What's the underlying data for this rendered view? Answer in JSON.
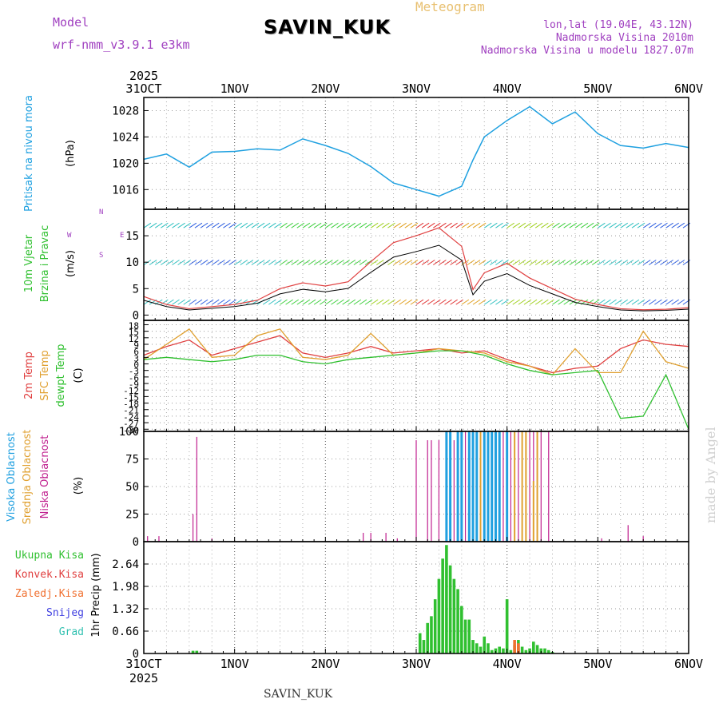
{
  "header": {
    "model_label": "Model",
    "model_name": "wrf-nmm_v3.9.1  e3km",
    "station": "SAVIN_KUK",
    "meteogram": "Meteogram",
    "lonlat": "lon,lat (19.04E, 43.12N)",
    "altitude": "Nadmorska Visina 2010m",
    "model_altitude": "Nadmorska Visina u modelu 1827.07m",
    "footer_station": "SAVIN_KUK",
    "watermark": "made by Angel"
  },
  "colors": {
    "pressure": "#1ea0e0",
    "temp2m": "#e04040",
    "sfc": "#e0a030",
    "dew": "#30c030",
    "low": "#c0208f",
    "mid": "#e0a030",
    "high": "#20a0e0",
    "precip": "#30c030",
    "conv": "#e04040",
    "frozen": "#f07030",
    "purple": "#a040c0",
    "green": "#30c030"
  },
  "chart_data": [
    {
      "type": "line",
      "panel": "pressure",
      "title": "Pritisak na nivou mora",
      "ylabel": "(hPa)",
      "x_ticks": [
        "31OCT",
        "1NOV",
        "2NOV",
        "3NOV",
        "4NOV",
        "5NOV",
        "6NOV"
      ],
      "year": "2025",
      "ylim": [
        1013,
        1030
      ],
      "yticks": [
        1016,
        1020,
        1024,
        1028
      ],
      "x_hours": [
        0,
        6,
        12,
        18,
        24,
        30,
        36,
        42,
        48,
        54,
        60,
        66,
        72,
        78,
        84,
        87,
        90,
        96,
        102,
        108,
        114,
        120,
        126,
        132,
        138,
        144
      ],
      "values": [
        1020.6,
        1021.4,
        1019.4,
        1021.7,
        1021.8,
        1022.2,
        1022.0,
        1023.7,
        1022.7,
        1021.5,
        1019.5,
        1017.0,
        1016.0,
        1015.0,
        1016.5,
        1020.5,
        1024.0,
        1026.5,
        1028.6,
        1026.0,
        1027.8,
        1024.5,
        1022.7,
        1022.3,
        1023.0,
        1022.4
      ],
      "series_name": "Pritisak"
    },
    {
      "type": "line",
      "panel": "wind",
      "title": "10m Vjetar Brzina i Pravac",
      "ylabel": "(m/s)",
      "ylim": [
        -1,
        20
      ],
      "yticks": [
        0,
        5,
        10,
        15
      ],
      "compass": [
        "N",
        "E",
        "S",
        "W"
      ],
      "x_hours": [
        0,
        6,
        12,
        18,
        24,
        30,
        36,
        42,
        48,
        54,
        60,
        66,
        72,
        78,
        84,
        87,
        90,
        96,
        102,
        108,
        114,
        120,
        126,
        132,
        138,
        144
      ],
      "values": [
        3.5,
        2.0,
        1.2,
        1.6,
        2.0,
        2.8,
        5.0,
        6.1,
        5.5,
        6.3,
        10.1,
        13.7,
        15.0,
        16.5,
        13.0,
        4.8,
        8.0,
        9.8,
        7.0,
        5.0,
        3.0,
        2.0,
        1.2,
        1.0,
        1.1,
        1.4
      ],
      "series_name": "Brzina vjetra"
    },
    {
      "type": "line",
      "panel": "temperature",
      "series_labels": [
        "2m Temp",
        "SFC Temp",
        "dewpt Temp"
      ],
      "ylabel": "(C)",
      "ylim": [
        -31,
        20
      ],
      "yticks": [
        -30,
        -27,
        -24,
        -21,
        -18,
        -15,
        -12,
        -9,
        -6,
        -3,
        0,
        3,
        6,
        9,
        12,
        15,
        18
      ],
      "x_hours": [
        0,
        6,
        12,
        18,
        24,
        30,
        36,
        42,
        48,
        54,
        60,
        66,
        72,
        78,
        84,
        90,
        96,
        102,
        108,
        114,
        120,
        126,
        132,
        138,
        144
      ],
      "series": [
        {
          "name": "2m Temp",
          "values": [
            4,
            8,
            11,
            4,
            7,
            10,
            13,
            5,
            3,
            5,
            8,
            5,
            6,
            7,
            5,
            6,
            2,
            -1,
            -4,
            -2,
            -1,
            7,
            11,
            9,
            8
          ]
        },
        {
          "name": "SFC Temp",
          "values": [
            2,
            9,
            16,
            3,
            4,
            13,
            16,
            3,
            2,
            4,
            14,
            4,
            5,
            7,
            6,
            5,
            1,
            -1,
            -5,
            7,
            -4,
            -4,
            15,
            1,
            -2
          ]
        },
        {
          "name": "dewpt Temp",
          "values": [
            2,
            3,
            2,
            1,
            2,
            4,
            4,
            1,
            0,
            2,
            3,
            4,
            5,
            6,
            6,
            4,
            0,
            -3,
            -5,
            -4,
            -3,
            -25,
            -24,
            -5,
            -30
          ]
        }
      ]
    },
    {
      "type": "bar",
      "panel": "clouds",
      "series_labels": [
        "Visoka Oblacnost",
        "Srednja Oblacnost",
        "Niska Oblacnost"
      ],
      "ylabel": "(%)",
      "ylim": [
        0,
        100
      ],
      "yticks": [
        0,
        25,
        50,
        75,
        100
      ],
      "series": [
        {
          "name": "Niska",
          "hours": [
            1,
            4,
            13,
            14,
            18,
            58,
            60,
            64,
            67,
            72,
            75,
            76,
            78,
            81,
            82,
            84,
            85,
            86,
            88,
            89,
            90,
            93,
            95,
            96,
            97,
            99,
            101,
            102,
            103,
            105,
            107,
            121,
            128,
            132
          ],
          "values": [
            5,
            5,
            25,
            95,
            3,
            8,
            8,
            8,
            3,
            92,
            92,
            92,
            92,
            92,
            92,
            92,
            100,
            100,
            100,
            100,
            100,
            100,
            100,
            100,
            100,
            100,
            100,
            100,
            100,
            100,
            100,
            3,
            15,
            5
          ]
        },
        {
          "name": "Srednja",
          "hours": [
            83,
            86,
            87,
            89,
            90,
            91,
            92,
            94,
            96,
            98,
            100,
            101,
            103,
            104
          ],
          "values": [
            100,
            100,
            100,
            100,
            100,
            100,
            100,
            100,
            100,
            100,
            100,
            100,
            55,
            100
          ]
        },
        {
          "name": "Visoka",
          "hours": [
            80,
            81,
            83,
            84,
            86,
            87,
            88,
            90,
            91,
            92,
            93,
            94,
            96
          ],
          "values": [
            100,
            100,
            100,
            100,
            100,
            100,
            100,
            100,
            100,
            100,
            100,
            100,
            100
          ]
        }
      ]
    },
    {
      "type": "bar",
      "panel": "precipitation",
      "series_labels": [
        "Ukupna Kisa",
        "Konvek.Kisa",
        "Zaledj.Kisa",
        "Snijeg",
        "Grad"
      ],
      "ylabel": "1hr Precip (mm)",
      "ylim": [
        0,
        3.3
      ],
      "yticks": [
        0,
        0.66,
        1.32,
        1.98,
        2.64
      ],
      "x_ticks": [
        "31OCT",
        "1NOV",
        "2NOV",
        "3NOV",
        "4NOV",
        "5NOV",
        "6NOV"
      ],
      "year": "2025",
      "hours": [
        13,
        14,
        73,
        74,
        75,
        76,
        77,
        78,
        79,
        80,
        81,
        82,
        83,
        84,
        85,
        86,
        87,
        88,
        89,
        90,
        91,
        92,
        93,
        94,
        95,
        96,
        97,
        98,
        99,
        100,
        101,
        102,
        103,
        104,
        105,
        106,
        107,
        108
      ],
      "values": [
        0.08,
        0.08,
        0.6,
        0.4,
        0.9,
        1.1,
        1.6,
        2.2,
        2.8,
        3.2,
        2.6,
        2.2,
        1.9,
        1.4,
        1.0,
        1.0,
        0.4,
        0.3,
        0.2,
        0.5,
        0.3,
        0.1,
        0.15,
        0.2,
        0.15,
        1.6,
        0.1,
        0.25,
        0.4,
        0.2,
        0.1,
        0.15,
        0.35,
        0.25,
        0.15,
        0.15,
        0.1,
        0.05
      ],
      "frozen_hours": [
        98,
        99
      ],
      "frozen_values": [
        0.4,
        0.3
      ]
    }
  ]
}
